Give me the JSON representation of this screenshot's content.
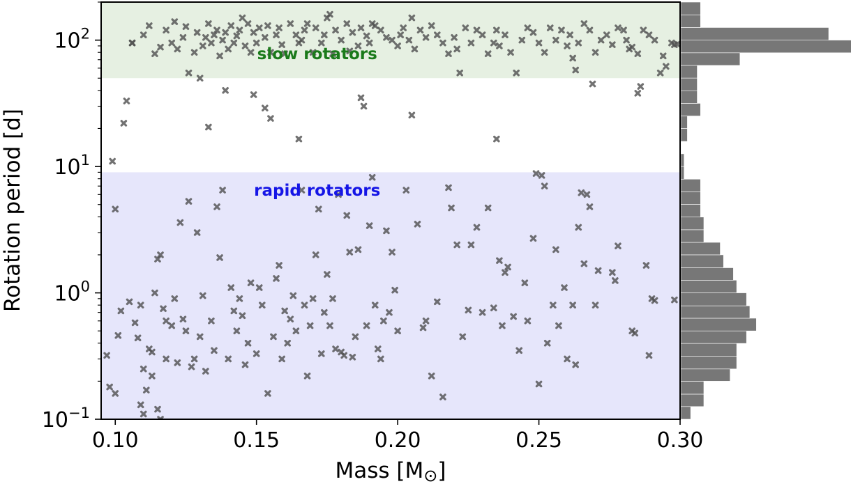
{
  "chart_data": {
    "type": "scatter",
    "xlabel": "Mass [M",
    "xlabel_symbol": "⊙",
    "xlabel_close": "]",
    "ylabel": "Rotation period [d]",
    "xlim": [
      0.095,
      0.3
    ],
    "ylim": [
      0.1,
      200
    ],
    "yscale": "log",
    "x_ticks": [
      {
        "value": 0.1,
        "label": "0.10"
      },
      {
        "value": 0.15,
        "label": "0.15"
      },
      {
        "value": 0.2,
        "label": "0.20"
      },
      {
        "value": 0.25,
        "label": "0.25"
      },
      {
        "value": 0.3,
        "label": "0.30"
      }
    ],
    "y_ticks": [
      {
        "value": 0.1,
        "base": "10",
        "exp": "−1"
      },
      {
        "value": 1,
        "base": "10",
        "exp": "0"
      },
      {
        "value": 10,
        "base": "10",
        "exp": "1"
      },
      {
        "value": 100,
        "base": "10",
        "exp": "2"
      }
    ],
    "bands": [
      {
        "label": "slow rotators",
        "ymin": 50,
        "ymax": 200,
        "color": "#e6f0e2",
        "text_color": "#1a7a1a"
      },
      {
        "label": "rapid rotators",
        "ymin": 0.1,
        "ymax": 9,
        "color": "#e6e6fb",
        "text_color": "#1515e6"
      }
    ],
    "marker_color": "#505050",
    "histogram": {
      "orientation": "horizontal",
      "color": "#777777",
      "bins": [
        {
          "ylo": 0.1,
          "yhi": 0.126,
          "count": 3
        },
        {
          "ylo": 0.126,
          "yhi": 0.158,
          "count": 7
        },
        {
          "ylo": 0.158,
          "yhi": 0.2,
          "count": 7
        },
        {
          "ylo": 0.2,
          "yhi": 0.25,
          "count": 15
        },
        {
          "ylo": 0.25,
          "yhi": 0.316,
          "count": 17
        },
        {
          "ylo": 0.316,
          "yhi": 0.398,
          "count": 17
        },
        {
          "ylo": 0.398,
          "yhi": 0.5,
          "count": 20
        },
        {
          "ylo": 0.5,
          "yhi": 0.63,
          "count": 23
        },
        {
          "ylo": 0.63,
          "yhi": 0.79,
          "count": 21
        },
        {
          "ylo": 0.79,
          "yhi": 1.0,
          "count": 20
        },
        {
          "ylo": 1.0,
          "yhi": 1.26,
          "count": 17
        },
        {
          "ylo": 1.26,
          "yhi": 1.58,
          "count": 16
        },
        {
          "ylo": 1.58,
          "yhi": 2.0,
          "count": 13
        },
        {
          "ylo": 2.0,
          "yhi": 2.51,
          "count": 12
        },
        {
          "ylo": 2.51,
          "yhi": 3.16,
          "count": 7
        },
        {
          "ylo": 3.16,
          "yhi": 3.98,
          "count": 7
        },
        {
          "ylo": 3.98,
          "yhi": 5.01,
          "count": 6
        },
        {
          "ylo": 5.01,
          "yhi": 6.3,
          "count": 6
        },
        {
          "ylo": 6.3,
          "yhi": 7.94,
          "count": 6
        },
        {
          "ylo": 7.94,
          "yhi": 10.0,
          "count": 1
        },
        {
          "ylo": 10.0,
          "yhi": 12.6,
          "count": 1
        },
        {
          "ylo": 12.6,
          "yhi": 15.8,
          "count": 0
        },
        {
          "ylo": 15.8,
          "yhi": 20.0,
          "count": 2
        },
        {
          "ylo": 20.0,
          "yhi": 25.1,
          "count": 2
        },
        {
          "ylo": 25.1,
          "yhi": 31.6,
          "count": 6
        },
        {
          "ylo": 31.6,
          "yhi": 39.8,
          "count": 5
        },
        {
          "ylo": 39.8,
          "yhi": 50.1,
          "count": 5
        },
        {
          "ylo": 50.1,
          "yhi": 63.1,
          "count": 5
        },
        {
          "ylo": 63.1,
          "yhi": 79.4,
          "count": 18
        },
        {
          "ylo": 79.4,
          "yhi": 100,
          "count": 52
        },
        {
          "ylo": 100,
          "yhi": 125.9,
          "count": 45
        },
        {
          "ylo": 125.9,
          "yhi": 158.5,
          "count": 6
        },
        {
          "ylo": 158.5,
          "yhi": 200,
          "count": 6
        }
      ]
    },
    "points": [
      [
        0.099,
        11
      ],
      [
        0.1,
        4.6
      ],
      [
        0.101,
        0.46
      ],
      [
        0.102,
        0.72
      ],
      [
        0.103,
        22
      ],
      [
        0.104,
        33
      ],
      [
        0.105,
        0.85
      ],
      [
        0.106,
        95
      ],
      [
        0.107,
        0.58
      ],
      [
        0.108,
        0.44
      ],
      [
        0.109,
        0.8
      ],
      [
        0.11,
        0.25
      ],
      [
        0.111,
        0.17
      ],
      [
        0.112,
        0.36
      ],
      [
        0.113,
        0.34
      ],
      [
        0.114,
        1.0
      ],
      [
        0.115,
        1.85
      ],
      [
        0.116,
        2.0
      ],
      [
        0.117,
        0.75
      ],
      [
        0.118,
        0.3
      ],
      [
        0.097,
        0.32
      ],
      [
        0.098,
        0.18
      ],
      [
        0.1,
        0.16
      ],
      [
        0.109,
        0.13
      ],
      [
        0.11,
        0.11
      ],
      [
        0.113,
        0.22
      ],
      [
        0.115,
        0.12
      ],
      [
        0.116,
        0.1
      ],
      [
        0.118,
        0.6
      ],
      [
        0.12,
        0.55
      ],
      [
        0.121,
        0.9
      ],
      [
        0.122,
        0.28
      ],
      [
        0.123,
        3.6
      ],
      [
        0.124,
        0.62
      ],
      [
        0.125,
        0.5
      ],
      [
        0.126,
        5.3
      ],
      [
        0.127,
        0.26
      ],
      [
        0.128,
        0.3
      ],
      [
        0.129,
        3.0
      ],
      [
        0.13,
        0.45
      ],
      [
        0.131,
        0.95
      ],
      [
        0.132,
        0.24
      ],
      [
        0.133,
        20.5
      ],
      [
        0.134,
        0.6
      ],
      [
        0.135,
        0.35
      ],
      [
        0.136,
        4.8
      ],
      [
        0.137,
        1.9
      ],
      [
        0.138,
        6.5
      ],
      [
        0.139,
        40
      ],
      [
        0.14,
        0.3
      ],
      [
        0.141,
        1.1
      ],
      [
        0.142,
        0.72
      ],
      [
        0.143,
        0.5
      ],
      [
        0.144,
        0.9
      ],
      [
        0.145,
        0.66
      ],
      [
        0.146,
        0.27
      ],
      [
        0.147,
        0.4
      ],
      [
        0.148,
        1.2
      ],
      [
        0.149,
        37
      ],
      [
        0.15,
        0.33
      ],
      [
        0.151,
        1.1
      ],
      [
        0.152,
        0.8
      ],
      [
        0.153,
        29
      ],
      [
        0.154,
        0.16
      ],
      [
        0.155,
        24
      ],
      [
        0.156,
        0.45
      ],
      [
        0.157,
        1.3
      ],
      [
        0.158,
        1.65
      ],
      [
        0.159,
        0.3
      ],
      [
        0.16,
        0.72
      ],
      [
        0.161,
        0.4
      ],
      [
        0.162,
        0.62
      ],
      [
        0.163,
        0.95
      ],
      [
        0.164,
        0.5
      ],
      [
        0.165,
        16.5
      ],
      [
        0.166,
        6.5
      ],
      [
        0.167,
        0.8
      ],
      [
        0.168,
        0.22
      ],
      [
        0.169,
        0.55
      ],
      [
        0.17,
        0.9
      ],
      [
        0.171,
        2.0
      ],
      [
        0.172,
        4.6
      ],
      [
        0.173,
        0.33
      ],
      [
        0.174,
        0.7
      ],
      [
        0.175,
        1.4
      ],
      [
        0.176,
        0.55
      ],
      [
        0.177,
        0.9
      ],
      [
        0.178,
        0.36
      ],
      [
        0.179,
        6.0
      ],
      [
        0.18,
        0.34
      ],
      [
        0.181,
        0.32
      ],
      [
        0.182,
        4.1
      ],
      [
        0.183,
        2.1
      ],
      [
        0.184,
        0.31
      ],
      [
        0.185,
        0.45
      ],
      [
        0.186,
        2.2
      ],
      [
        0.187,
        35
      ],
      [
        0.188,
        30
      ],
      [
        0.189,
        0.55
      ],
      [
        0.19,
        3.4
      ],
      [
        0.191,
        8.2
      ],
      [
        0.192,
        0.8
      ],
      [
        0.193,
        0.36
      ],
      [
        0.194,
        0.3
      ],
      [
        0.195,
        0.6
      ],
      [
        0.196,
        3.1
      ],
      [
        0.197,
        0.7
      ],
      [
        0.198,
        2.1
      ],
      [
        0.199,
        1.05
      ],
      [
        0.2,
        0.5
      ],
      [
        0.203,
        6.5
      ],
      [
        0.205,
        25.5
      ],
      [
        0.207,
        3.5
      ],
      [
        0.209,
        0.53
      ],
      [
        0.21,
        0.6
      ],
      [
        0.212,
        0.22
      ],
      [
        0.214,
        0.85
      ],
      [
        0.216,
        0.15
      ],
      [
        0.218,
        6.8
      ],
      [
        0.219,
        4.7
      ],
      [
        0.221,
        2.4
      ],
      [
        0.223,
        0.45
      ],
      [
        0.225,
        0.73
      ],
      [
        0.226,
        2.4
      ],
      [
        0.228,
        3.3
      ],
      [
        0.23,
        0.7
      ],
      [
        0.232,
        4.7
      ],
      [
        0.234,
        0.76
      ],
      [
        0.235,
        16.5
      ],
      [
        0.236,
        1.8
      ],
      [
        0.237,
        0.55
      ],
      [
        0.238,
        1.45
      ],
      [
        0.239,
        1.6
      ],
      [
        0.241,
        0.65
      ],
      [
        0.243,
        0.35
      ],
      [
        0.245,
        1.2
      ],
      [
        0.246,
        0.6
      ],
      [
        0.248,
        2.7
      ],
      [
        0.249,
        8.8
      ],
      [
        0.25,
        0.19
      ],
      [
        0.251,
        8.5
      ],
      [
        0.252,
        7.0
      ],
      [
        0.253,
        0.4
      ],
      [
        0.255,
        0.8
      ],
      [
        0.256,
        2.2
      ],
      [
        0.257,
        0.55
      ],
      [
        0.259,
        1.1
      ],
      [
        0.26,
        0.3
      ],
      [
        0.262,
        0.8
      ],
      [
        0.263,
        0.27
      ],
      [
        0.264,
        3.3
      ],
      [
        0.265,
        6.2
      ],
      [
        0.266,
        1.7
      ],
      [
        0.267,
        6.0
      ],
      [
        0.268,
        4.8
      ],
      [
        0.269,
        45
      ],
      [
        0.27,
        0.8
      ],
      [
        0.271,
        1.5
      ],
      [
        0.276,
        1.45
      ],
      [
        0.277,
        1.25
      ],
      [
        0.278,
        2.35
      ],
      [
        0.283,
        0.5
      ],
      [
        0.284,
        0.48
      ],
      [
        0.285,
        38
      ],
      [
        0.286,
        43
      ],
      [
        0.288,
        1.65
      ],
      [
        0.289,
        0.32
      ],
      [
        0.29,
        0.9
      ],
      [
        0.291,
        0.87
      ],
      [
        0.298,
        0.88
      ],
      [
        0.106,
        95
      ],
      [
        0.11,
        110
      ],
      [
        0.112,
        130
      ],
      [
        0.114,
        78
      ],
      [
        0.116,
        88
      ],
      [
        0.118,
        120
      ],
      [
        0.12,
        95
      ],
      [
        0.121,
        140
      ],
      [
        0.122,
        85
      ],
      [
        0.124,
        105
      ],
      [
        0.125,
        128
      ],
      [
        0.126,
        55
      ],
      [
        0.128,
        80
      ],
      [
        0.129,
        115
      ],
      [
        0.13,
        50
      ],
      [
        0.131,
        90
      ],
      [
        0.132,
        105
      ],
      [
        0.133,
        135
      ],
      [
        0.134,
        95
      ],
      [
        0.135,
        110
      ],
      [
        0.136,
        120
      ],
      [
        0.137,
        75
      ],
      [
        0.138,
        100
      ],
      [
        0.139,
        115
      ],
      [
        0.14,
        85
      ],
      [
        0.141,
        130
      ],
      [
        0.142,
        95
      ],
      [
        0.143,
        108
      ],
      [
        0.144,
        120
      ],
      [
        0.145,
        150
      ],
      [
        0.146,
        90
      ],
      [
        0.147,
        135
      ],
      [
        0.148,
        80
      ],
      [
        0.149,
        115
      ],
      [
        0.15,
        95
      ],
      [
        0.151,
        125
      ],
      [
        0.153,
        105
      ],
      [
        0.154,
        130
      ],
      [
        0.155,
        80
      ],
      [
        0.157,
        110
      ],
      [
        0.158,
        125
      ],
      [
        0.159,
        92
      ],
      [
        0.16,
        78
      ],
      [
        0.162,
        135
      ],
      [
        0.164,
        110
      ],
      [
        0.165,
        95
      ],
      [
        0.166,
        100
      ],
      [
        0.167,
        120
      ],
      [
        0.168,
        135
      ],
      [
        0.17,
        80
      ],
      [
        0.171,
        125
      ],
      [
        0.173,
        95
      ],
      [
        0.174,
        110
      ],
      [
        0.175,
        150
      ],
      [
        0.176,
        160
      ],
      [
        0.177,
        78
      ],
      [
        0.178,
        120
      ],
      [
        0.18,
        100
      ],
      [
        0.182,
        135
      ],
      [
        0.183,
        82
      ],
      [
        0.184,
        115
      ],
      [
        0.186,
        90
      ],
      [
        0.187,
        125
      ],
      [
        0.189,
        108
      ],
      [
        0.19,
        95
      ],
      [
        0.191,
        135
      ],
      [
        0.192,
        130
      ],
      [
        0.194,
        120
      ],
      [
        0.196,
        105
      ],
      [
        0.198,
        100
      ],
      [
        0.2,
        90
      ],
      [
        0.201,
        110
      ],
      [
        0.202,
        125
      ],
      [
        0.204,
        100
      ],
      [
        0.205,
        150
      ],
      [
        0.206,
        85
      ],
      [
        0.208,
        120
      ],
      [
        0.21,
        105
      ],
      [
        0.212,
        130
      ],
      [
        0.214,
        110
      ],
      [
        0.216,
        95
      ],
      [
        0.218,
        78
      ],
      [
        0.22,
        105
      ],
      [
        0.221,
        85
      ],
      [
        0.222,
        55
      ],
      [
        0.224,
        125
      ],
      [
        0.226,
        95
      ],
      [
        0.228,
        120
      ],
      [
        0.23,
        110
      ],
      [
        0.232,
        78
      ],
      [
        0.234,
        95
      ],
      [
        0.235,
        120
      ],
      [
        0.236,
        90
      ],
      [
        0.238,
        110
      ],
      [
        0.24,
        80
      ],
      [
        0.242,
        55
      ],
      [
        0.244,
        100
      ],
      [
        0.246,
        125
      ],
      [
        0.248,
        115
      ],
      [
        0.25,
        95
      ],
      [
        0.252,
        80
      ],
      [
        0.254,
        125
      ],
      [
        0.256,
        100
      ],
      [
        0.258,
        120
      ],
      [
        0.26,
        90
      ],
      [
        0.261,
        110
      ],
      [
        0.262,
        72
      ],
      [
        0.263,
        58
      ],
      [
        0.264,
        95
      ],
      [
        0.266,
        135
      ],
      [
        0.268,
        120
      ],
      [
        0.27,
        80
      ],
      [
        0.272,
        100
      ],
      [
        0.274,
        110
      ],
      [
        0.276,
        92
      ],
      [
        0.278,
        125
      ],
      [
        0.28,
        120
      ],
      [
        0.281,
        100
      ],
      [
        0.282,
        85
      ],
      [
        0.283,
        88
      ],
      [
        0.285,
        78
      ],
      [
        0.287,
        120
      ],
      [
        0.289,
        110
      ],
      [
        0.291,
        100
      ],
      [
        0.293,
        55
      ],
      [
        0.294,
        75
      ],
      [
        0.295,
        62
      ],
      [
        0.297,
        95
      ],
      [
        0.298,
        92
      ],
      [
        0.299,
        93
      ]
    ]
  }
}
